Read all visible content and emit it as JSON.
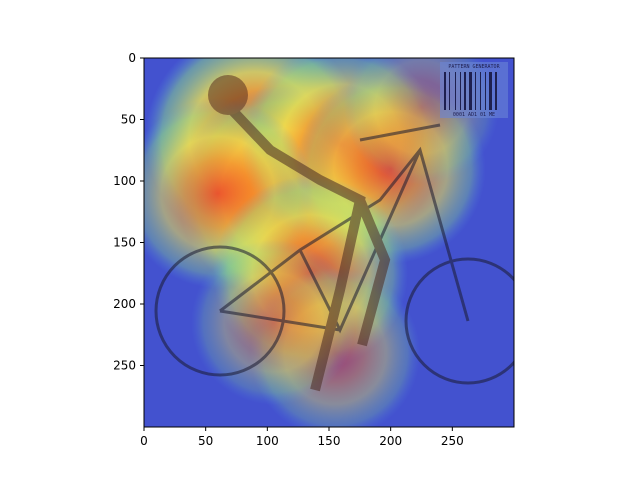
{
  "chart_data": {
    "type": "heatmap",
    "title": "",
    "xlabel": "",
    "ylabel": "",
    "xlim": [
      0,
      300
    ],
    "ylim": [
      300,
      0
    ],
    "x_ticks": [
      0,
      50,
      100,
      150,
      200,
      250
    ],
    "y_ticks": [
      0,
      50,
      100,
      150,
      200,
      250
    ],
    "x_tick_labels": [
      "0",
      "50",
      "100",
      "150",
      "200",
      "250"
    ],
    "y_tick_labels": [
      "0",
      "50",
      "100",
      "150",
      "200",
      "250"
    ],
    "colormap": "jet",
    "grid": false,
    "legend": "none",
    "image_content": "photo of a woman posing on a mountain bike overlaid with an attention heatmap",
    "hotspots": [
      {
        "x": 90,
        "y": 65,
        "intensity": 1.0
      },
      {
        "x": 115,
        "y": 110,
        "intensity": 0.95
      },
      {
        "x": 160,
        "y": 70,
        "intensity": 0.8
      },
      {
        "x": 200,
        "y": 90,
        "intensity": 0.7
      },
      {
        "x": 60,
        "y": 110,
        "intensity": 0.7
      },
      {
        "x": 135,
        "y": 175,
        "intensity": 0.75
      },
      {
        "x": 155,
        "y": 240,
        "intensity": 0.5
      },
      {
        "x": 105,
        "y": 215,
        "intensity": 0.45
      },
      {
        "x": 225,
        "y": 40,
        "intensity": 0.35
      }
    ],
    "barcode": {
      "text_top": "PATTERN GENERATOR",
      "text_bottom": "0001 AD1 01 ME"
    }
  },
  "colors": {
    "cold": "#3a32c8",
    "cool": "#4f84e8",
    "mid": "#9ee07a",
    "warm": "#f2e050",
    "hot": "#ee2828"
  }
}
